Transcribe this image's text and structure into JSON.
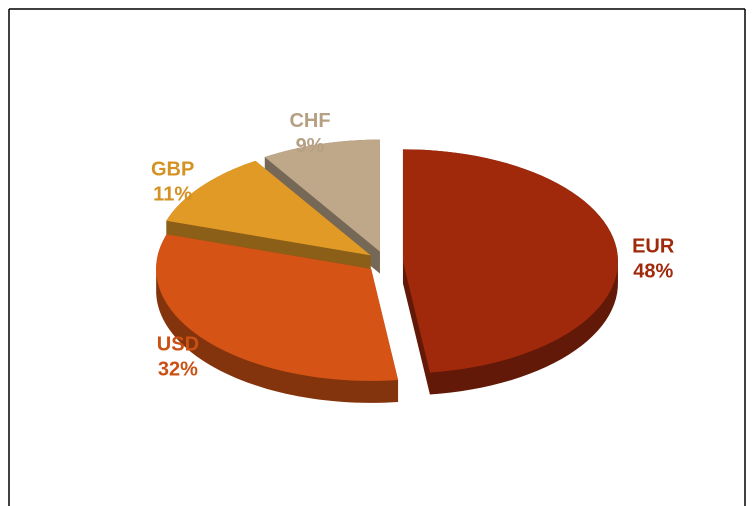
{
  "chart_data": {
    "type": "pie",
    "categories": [
      "EUR",
      "USD",
      "GBP",
      "CHF"
    ],
    "values": [
      48,
      32,
      11,
      9
    ],
    "value_labels": [
      "48%",
      "32%",
      "11%",
      "9%"
    ],
    "colors": [
      "#a0290b",
      "#d55415",
      "#e09a25",
      "#bfa88a"
    ]
  }
}
